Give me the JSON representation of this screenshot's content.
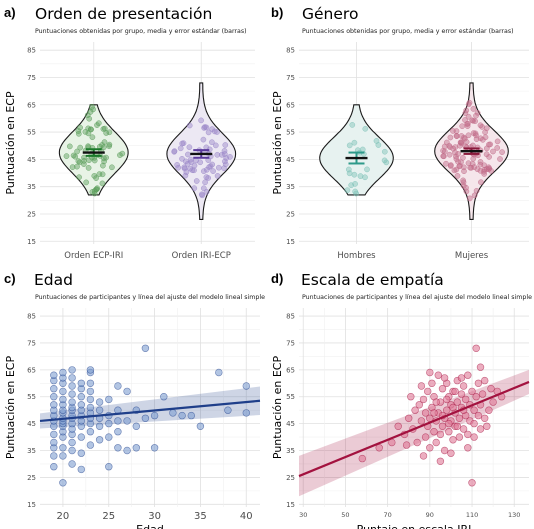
{
  "chart_data": [
    {
      "tag": "a)",
      "type": "violin",
      "title": "Orden de presentación",
      "subtitle": "Puntuaciones obtenidas por grupo, media y error estándar (barras)",
      "xlabel": "",
      "ylabel": "Puntuación en ECP",
      "ylim": [
        14,
        88
      ],
      "yticks": [
        15,
        25,
        35,
        45,
        55,
        65,
        75,
        85
      ],
      "categories": [
        "Orden ECP-IRI",
        "Orden IRI-ECP"
      ],
      "colors": [
        "#1b7a2b",
        "#5b3a9c"
      ],
      "fills": [
        "#e8f3e6",
        "#ece8f3"
      ],
      "point_colors": [
        "#5a9e5a",
        "#9a86c8"
      ],
      "groups": [
        {
          "label": "Orden ECP-IRI",
          "mean": 47.5,
          "se": 1.2,
          "min": 32,
          "max": 65,
          "n": 72,
          "seed": 11
        },
        {
          "label": "Orden IRI-ECP",
          "mean": 47.0,
          "se": 1.4,
          "min": 23,
          "max": 73,
          "n": 70,
          "seed": 23
        }
      ]
    },
    {
      "tag": "b)",
      "type": "violin",
      "title": "Género",
      "subtitle": "Puntuaciones obtenidas por grupo, media y error estándar (barras)",
      "xlabel": "",
      "ylabel": "Puntuación en ECP",
      "ylim": [
        14,
        88
      ],
      "yticks": [
        15,
        25,
        35,
        45,
        55,
        65,
        75,
        85
      ],
      "categories": [
        "Hombres",
        "Mujeres"
      ],
      "colors": [
        "#2e9a8a",
        "#8a1a3c"
      ],
      "fills": [
        "#e7f2f0",
        "#f5e6eb"
      ],
      "point_colors": [
        "#7cc0b6",
        "#c06a88"
      ],
      "groups": [
        {
          "label": "Hombres",
          "mean": 45.5,
          "se": 2.0,
          "min": 32,
          "max": 65,
          "n": 24,
          "seed": 37
        },
        {
          "label": "Mujeres",
          "mean": 48.0,
          "se": 1.0,
          "min": 23,
          "max": 73,
          "n": 118,
          "seed": 41
        }
      ]
    },
    {
      "tag": "c)",
      "type": "scatter",
      "title": "Edad",
      "subtitle": "Puntuaciones de participantes y línea del ajuste del modelo lineal simple",
      "xlabel": "Edad",
      "ylabel": "Puntuación en ECP",
      "xlim": [
        17.5,
        41.5
      ],
      "ylim": [
        14,
        88
      ],
      "xticks": [
        20,
        25,
        30,
        35,
        40
      ],
      "yticks": [
        15,
        25,
        35,
        45,
        55,
        65,
        75,
        85
      ],
      "color": "#1f3f8a",
      "point_fill": "#7f9ed0",
      "fit": {
        "x": [
          17.5,
          41.5
        ],
        "y": [
          46.0,
          53.5
        ],
        "se_low": [
          43.2,
          48.2
        ],
        "se_high": [
          48.8,
          58.8
        ]
      },
      "points": [
        [
          19,
          36
        ],
        [
          19,
          38
        ],
        [
          19,
          41
        ],
        [
          19,
          44
        ],
        [
          19,
          46
        ],
        [
          19,
          48
        ],
        [
          19,
          50
        ],
        [
          19,
          52
        ],
        [
          19,
          55
        ],
        [
          19,
          58
        ],
        [
          19,
          61
        ],
        [
          19,
          63
        ],
        [
          19,
          33
        ],
        [
          19,
          29
        ],
        [
          20,
          23
        ],
        [
          20,
          33
        ],
        [
          20,
          36
        ],
        [
          20,
          40
        ],
        [
          20,
          42
        ],
        [
          20,
          44
        ],
        [
          20,
          45
        ],
        [
          20,
          46
        ],
        [
          20,
          47
        ],
        [
          20,
          49
        ],
        [
          20,
          50
        ],
        [
          20,
          52
        ],
        [
          20,
          54
        ],
        [
          20,
          57
        ],
        [
          20,
          60
        ],
        [
          20,
          62
        ],
        [
          20,
          64
        ],
        [
          21,
          30
        ],
        [
          21,
          35
        ],
        [
          21,
          38
        ],
        [
          21,
          41
        ],
        [
          21,
          43
        ],
        [
          21,
          45
        ],
        [
          21,
          47
        ],
        [
          21,
          48
        ],
        [
          21,
          50
        ],
        [
          21,
          51
        ],
        [
          21,
          53
        ],
        [
          21,
          56
        ],
        [
          21,
          59
        ],
        [
          21,
          62
        ],
        [
          21,
          65
        ],
        [
          22,
          28
        ],
        [
          22,
          34
        ],
        [
          22,
          40
        ],
        [
          22,
          44
        ],
        [
          22,
          46
        ],
        [
          22,
          48
        ],
        [
          22,
          50
        ],
        [
          22,
          52
        ],
        [
          22,
          55
        ],
        [
          22,
          58
        ],
        [
          22,
          60
        ],
        [
          23,
          37
        ],
        [
          23,
          42
        ],
        [
          23,
          45
        ],
        [
          23,
          47
        ],
        [
          23,
          49
        ],
        [
          23,
          51
        ],
        [
          23,
          54
        ],
        [
          23,
          57
        ],
        [
          23,
          60
        ],
        [
          23,
          64
        ],
        [
          23,
          65
        ],
        [
          24,
          39
        ],
        [
          24,
          44
        ],
        [
          24,
          47
        ],
        [
          24,
          50
        ],
        [
          24,
          53
        ],
        [
          25,
          29
        ],
        [
          25,
          40
        ],
        [
          25,
          45
        ],
        [
          25,
          48
        ],
        [
          25,
          54
        ],
        [
          26,
          36
        ],
        [
          26,
          42
        ],
        [
          26,
          46
        ],
        [
          26,
          50
        ],
        [
          26,
          59
        ],
        [
          27,
          35
        ],
        [
          27,
          46
        ],
        [
          27,
          57
        ],
        [
          28,
          36
        ],
        [
          28,
          44
        ],
        [
          28,
          50
        ],
        [
          29,
          73
        ],
        [
          29,
          47
        ],
        [
          30,
          36
        ],
        [
          30,
          48
        ],
        [
          31,
          55
        ],
        [
          32,
          49
        ],
        [
          33,
          48
        ],
        [
          34,
          48
        ],
        [
          35,
          44
        ],
        [
          37,
          64
        ],
        [
          38,
          50
        ],
        [
          40,
          49
        ],
        [
          40,
          59
        ]
      ]
    },
    {
      "tag": "d)",
      "type": "scatter",
      "title": "Escala de empatía",
      "subtitle": "Puntuaciones de participantes y línea del ajuste del modelo lineal simple",
      "xlabel": "Puntaje en escala IRI",
      "ylabel": "Puntuación en ECP",
      "xlim": [
        28,
        137
      ],
      "ylim": [
        14,
        88
      ],
      "xticks": [
        30,
        50,
        70,
        90,
        110,
        130
      ],
      "yticks": [
        15,
        25,
        35,
        45,
        55,
        65,
        75,
        85
      ],
      "color": "#a3123f",
      "point_fill": "#e07896",
      "fit": {
        "x": [
          28,
          137
        ],
        "y": [
          25.5,
          60.5
        ],
        "se_low": [
          18.0,
          56.0
        ],
        "se_high": [
          33.0,
          65.0
        ]
      },
      "points": [
        [
          58,
          32
        ],
        [
          66,
          36
        ],
        [
          72,
          38
        ],
        [
          75,
          44
        ],
        [
          78,
          41
        ],
        [
          80,
          47
        ],
        [
          82,
          43
        ],
        [
          83,
          50
        ],
        [
          84,
          38
        ],
        [
          85,
          52
        ],
        [
          86,
          46
        ],
        [
          87,
          54
        ],
        [
          88,
          40
        ],
        [
          88,
          49
        ],
        [
          89,
          44
        ],
        [
          89,
          57
        ],
        [
          90,
          36
        ],
        [
          90,
          47
        ],
        [
          91,
          51
        ],
        [
          91,
          60
        ],
        [
          92,
          42
        ],
        [
          92,
          55
        ],
        [
          93,
          38
        ],
        [
          93,
          46
        ],
        [
          94,
          49
        ],
        [
          94,
          63
        ],
        [
          95,
          41
        ],
        [
          95,
          53
        ],
        [
          96,
          44
        ],
        [
          96,
          58
        ],
        [
          97,
          35
        ],
        [
          97,
          47
        ],
        [
          98,
          50
        ],
        [
          98,
          60
        ],
        [
          99,
          42
        ],
        [
          99,
          55
        ],
        [
          100,
          46
        ],
        [
          100,
          52
        ],
        [
          101,
          39
        ],
        [
          101,
          57
        ],
        [
          102,
          44
        ],
        [
          102,
          49
        ],
        [
          103,
          53
        ],
        [
          103,
          61
        ],
        [
          104,
          40
        ],
        [
          104,
          47
        ],
        [
          105,
          51
        ],
        [
          105,
          56
        ],
        [
          106,
          43
        ],
        [
          106,
          59
        ],
        [
          107,
          48
        ],
        [
          107,
          54
        ],
        [
          108,
          41
        ],
        [
          108,
          63
        ],
        [
          109,
          46
        ],
        [
          109,
          52
        ],
        [
          110,
          57
        ],
        [
          110,
          23
        ],
        [
          111,
          45
        ],
        [
          111,
          50
        ],
        [
          112,
          73
        ],
        [
          112,
          55
        ],
        [
          113,
          48
        ],
        [
          113,
          60
        ],
        [
          114,
          43
        ],
        [
          114,
          52
        ],
        [
          115,
          56
        ],
        [
          116,
          47
        ],
        [
          116,
          61
        ],
        [
          118,
          50
        ],
        [
          119,
          58
        ],
        [
          120,
          53
        ],
        [
          122,
          57
        ],
        [
          124,
          55
        ],
        [
          79,
          37
        ],
        [
          81,
          55
        ],
        [
          86,
          59
        ],
        [
          87,
          33
        ],
        [
          90,
          64
        ],
        [
          95,
          31
        ],
        [
          97,
          62
        ],
        [
          100,
          34
        ],
        [
          103,
          44
        ],
        [
          105,
          62
        ],
        [
          108,
          36
        ],
        [
          111,
          40
        ],
        [
          114,
          66
        ],
        [
          117,
          44
        ],
        [
          96,
          48
        ],
        [
          99,
          45
        ],
        [
          101,
          51
        ],
        [
          93,
          53
        ],
        [
          92,
          49
        ],
        [
          98,
          54
        ],
        [
          102,
          57
        ],
        [
          106,
          50
        ]
      ]
    }
  ]
}
